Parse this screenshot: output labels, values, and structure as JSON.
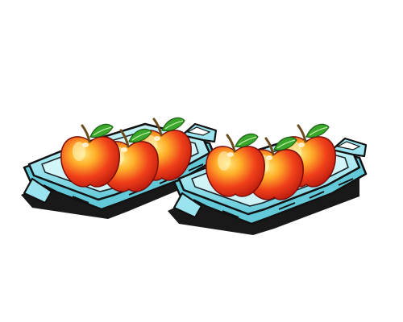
{
  "scene": {
    "trays": [
      {
        "name": "left-tray",
        "apples": [
          {
            "name": "back-apple"
          },
          {
            "name": "middle-apple"
          },
          {
            "name": "front-apple"
          }
        ]
      },
      {
        "name": "right-tray",
        "apples": [
          {
            "name": "back-apple"
          },
          {
            "name": "middle-apple"
          },
          {
            "name": "front-apple"
          }
        ]
      }
    ],
    "colors": {
      "tray_fill": "#9be3ee",
      "tray_shade": "#63c8d8",
      "tray_outline": "#111111",
      "shadow": "#000000",
      "apple_red": "#e8231a",
      "apple_orange": "#ff8a1c",
      "apple_yellow": "#ffd54a",
      "leaf": "#3aa62c",
      "stem": "#6b4a1d"
    }
  }
}
